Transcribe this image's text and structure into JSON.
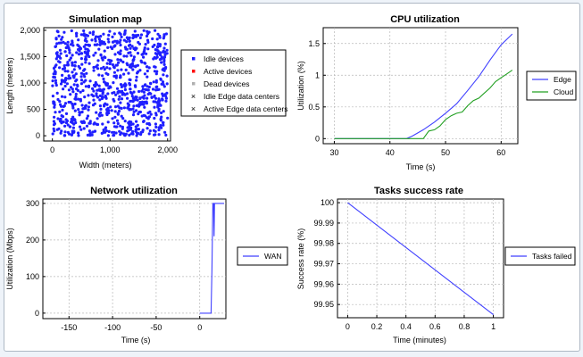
{
  "chart_data": [
    {
      "id": "map",
      "type": "scatter",
      "title": "Simulation map",
      "xlabel": "Width (meters)",
      "ylabel": "Length (meters)",
      "xlim": [
        -150,
        2050
      ],
      "ylim": [
        -100,
        2050
      ],
      "xticks": [
        "0",
        "1,000",
        "2,000"
      ],
      "yticks": [
        "0",
        "500",
        "1,000",
        "1,500",
        "2,000"
      ],
      "grid": false,
      "points_count": 900,
      "point_color": "#1f1fff",
      "legend_position": "right",
      "legend": [
        {
          "label": "Idle devices",
          "marker": "dot",
          "color": "#1f1fff"
        },
        {
          "label": "Active devices",
          "marker": "dot",
          "color": "#ff0000"
        },
        {
          "label": "Dead devices",
          "marker": "dot",
          "color": "#b0b0b0"
        },
        {
          "label": "Idle Edge data centers",
          "marker": "x",
          "color": "#000000"
        },
        {
          "label": "Active Edge data centers",
          "marker": "x",
          "color": "#ff0000"
        }
      ]
    },
    {
      "id": "cpu",
      "type": "line",
      "title": "CPU utilization",
      "xlabel": "Time (s)",
      "ylabel": "Utilization (%)",
      "xlim": [
        28,
        63
      ],
      "ylim": [
        -0.08,
        1.75
      ],
      "xticks": [
        "30",
        "40",
        "50",
        "60"
      ],
      "yticks": [
        "0",
        "0.5",
        "1",
        "1.5"
      ],
      "grid": true,
      "legend_position": "right",
      "series": [
        {
          "name": "Edge",
          "color": "#4040ff",
          "x": [
            30,
            43,
            44,
            46,
            48,
            50,
            52,
            54,
            56,
            58,
            60,
            62
          ],
          "y": [
            0,
            0,
            0.04,
            0.14,
            0.26,
            0.4,
            0.55,
            0.76,
            0.98,
            1.24,
            1.48,
            1.65
          ]
        },
        {
          "name": "Cloud",
          "color": "#22a022",
          "x": [
            30,
            46,
            47,
            48,
            49,
            50,
            51,
            52,
            53,
            54,
            55,
            56,
            57,
            58,
            59,
            60,
            61,
            62
          ],
          "y": [
            0,
            0,
            0.12,
            0.14,
            0.2,
            0.3,
            0.36,
            0.4,
            0.42,
            0.52,
            0.6,
            0.64,
            0.72,
            0.8,
            0.9,
            0.96,
            1.02,
            1.08
          ]
        }
      ]
    },
    {
      "id": "net",
      "type": "line",
      "title": "Network utilization",
      "xlabel": "Time (s)",
      "ylabel": "Utilization (Mbps)",
      "xlim": [
        -180,
        30
      ],
      "ylim": [
        -15,
        312
      ],
      "xticks": [
        "-150",
        "-100",
        "-50",
        "0"
      ],
      "yticks": [
        "0",
        "100",
        "200",
        "300"
      ],
      "grid": true,
      "legend_position": "right",
      "series": [
        {
          "name": "WAN",
          "color": "#4040ff",
          "x": [
            0,
            13,
            14,
            15,
            16,
            16.5,
            17,
            17.5,
            18,
            28
          ],
          "y": [
            0,
            0,
            120,
            300,
            300,
            210,
            300,
            300,
            300,
            300
          ]
        }
      ]
    },
    {
      "id": "tasks",
      "type": "line",
      "title": "Tasks success rate",
      "xlabel": "Time (minutes)",
      "ylabel": "Success rate (%)",
      "xlim": [
        -0.07,
        1.07
      ],
      "ylim": [
        99.9435,
        100.0018
      ],
      "xticks": [
        "0",
        "0.2",
        "0.4",
        "0.6",
        "0.8",
        "1"
      ],
      "yticks": [
        "100",
        "99.99",
        "99.98",
        "99.97",
        "99.96",
        "99.95"
      ],
      "grid": true,
      "legend_position": "right",
      "series": [
        {
          "name": "Tasks failed",
          "color": "#4040ff",
          "x": [
            0,
            1
          ],
          "y": [
            100,
            99.945
          ]
        }
      ]
    }
  ]
}
